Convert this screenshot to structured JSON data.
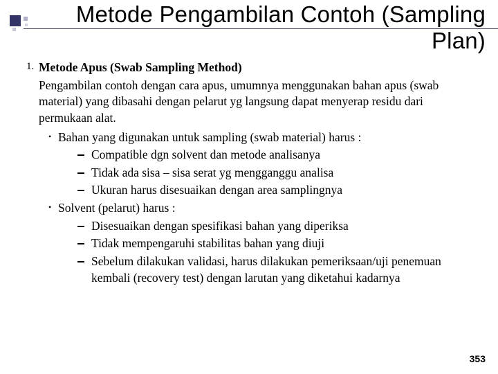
{
  "title": "Metode Pengambilan Contoh (Sampling Plan)",
  "list_number": "1.",
  "subtitle": "Metode Apus (Swab Sampling Method)",
  "paragraph": "Pengambilan contoh dengan cara apus, umumnya menggunakan bahan apus (swab material) yang dibasahi dengan pelarut yg langsung dapat menyerap residu dari permukaan alat.",
  "b1": {
    "text": "Bahan yang digunakan untuk sampling (swab material) harus :"
  },
  "b1s1": "Compatible dgn solvent dan metode analisanya",
  "b1s2": "Tidak ada sisa – sisa serat yg mengganggu analisa",
  "b1s3": "Ukuran harus disesuaikan dengan area samplingnya",
  "b2": {
    "text": "Solvent  (pelarut) harus :"
  },
  "b2s1": "Disesuaikan dengan spesifikasi bahan yang diperiksa",
  "b2s2": "Tidak mempengaruhi stabilitas bahan yang diuji",
  "b2s3": "Sebelum dilakukan validasi, harus dilakukan pemeriksaan/uji penemuan kembali (recovery test) dengan larutan yang diketahui kadarnya",
  "page_number": "353"
}
